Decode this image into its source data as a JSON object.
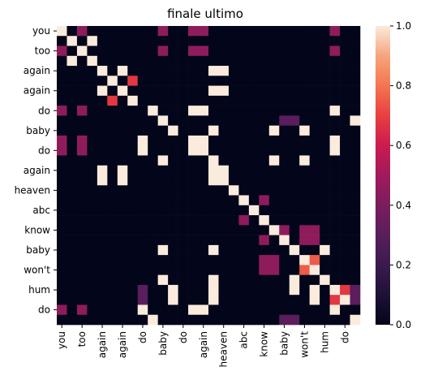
{
  "chart_data": {
    "type": "heatmap",
    "title": "finale ultimo",
    "xlabel": "",
    "ylabel": "",
    "rows": 30,
    "cols": 30,
    "y_tick_labels": [
      "you",
      "too",
      "again",
      "again",
      "do",
      "baby",
      "do",
      "again",
      "heaven",
      "abc",
      "know",
      "baby",
      "won't",
      "hum",
      "do"
    ],
    "x_tick_labels": [
      "you",
      "too",
      "again",
      "again",
      "do",
      "baby",
      "do",
      "again",
      "heaven",
      "abc",
      "know",
      "baby",
      "won't",
      "hum",
      "do"
    ],
    "colorbar": {
      "min": 0.0,
      "max": 1.0,
      "ticks": [
        "0.0",
        "0.2",
        "0.4",
        "0.6",
        "0.8",
        "1.0"
      ]
    },
    "colormap": "rocket",
    "default_value": 0.0,
    "cells": [
      {
        "r": 0,
        "c": 0,
        "v": 1.0
      },
      {
        "r": 0,
        "c": 2,
        "v": 0.45
      },
      {
        "r": 0,
        "c": 10,
        "v": 0.45
      },
      {
        "r": 0,
        "c": 13,
        "v": 0.45
      },
      {
        "r": 0,
        "c": 14,
        "v": 0.45
      },
      {
        "r": 0,
        "c": 27,
        "v": 0.45
      },
      {
        "r": 1,
        "c": 1,
        "v": 1.0
      },
      {
        "r": 1,
        "c": 3,
        "v": 1.0
      },
      {
        "r": 2,
        "c": 0,
        "v": 0.45
      },
      {
        "r": 2,
        "c": 2,
        "v": 1.0
      },
      {
        "r": 2,
        "c": 10,
        "v": 0.45
      },
      {
        "r": 2,
        "c": 13,
        "v": 0.45
      },
      {
        "r": 2,
        "c": 14,
        "v": 0.45
      },
      {
        "r": 2,
        "c": 27,
        "v": 0.45
      },
      {
        "r": 3,
        "c": 1,
        "v": 1.0
      },
      {
        "r": 3,
        "c": 3,
        "v": 1.0
      },
      {
        "r": 4,
        "c": 4,
        "v": 1.0
      },
      {
        "r": 4,
        "c": 6,
        "v": 1.0
      },
      {
        "r": 4,
        "c": 15,
        "v": 1.0
      },
      {
        "r": 4,
        "c": 16,
        "v": 1.0
      },
      {
        "r": 5,
        "c": 5,
        "v": 1.0
      },
      {
        "r": 5,
        "c": 7,
        "v": 0.68
      },
      {
        "r": 6,
        "c": 4,
        "v": 1.0
      },
      {
        "r": 6,
        "c": 6,
        "v": 1.0
      },
      {
        "r": 6,
        "c": 15,
        "v": 1.0
      },
      {
        "r": 6,
        "c": 16,
        "v": 1.0
      },
      {
        "r": 7,
        "c": 5,
        "v": 0.68
      },
      {
        "r": 7,
        "c": 7,
        "v": 1.0
      },
      {
        "r": 8,
        "c": 0,
        "v": 0.45
      },
      {
        "r": 8,
        "c": 2,
        "v": 0.45
      },
      {
        "r": 8,
        "c": 9,
        "v": 1.0
      },
      {
        "r": 8,
        "c": 13,
        "v": 1.0
      },
      {
        "r": 8,
        "c": 14,
        "v": 1.0
      },
      {
        "r": 8,
        "c": 27,
        "v": 1.0
      },
      {
        "r": 9,
        "c": 10,
        "v": 1.0
      },
      {
        "r": 9,
        "c": 22,
        "v": 0.3
      },
      {
        "r": 9,
        "c": 23,
        "v": 0.3
      },
      {
        "r": 9,
        "c": 29,
        "v": 1.0
      },
      {
        "r": 10,
        "c": 11,
        "v": 1.0
      },
      {
        "r": 10,
        "c": 15,
        "v": 1.0
      },
      {
        "r": 10,
        "c": 21,
        "v": 1.0
      },
      {
        "r": 10,
        "c": 24,
        "v": 1.0
      },
      {
        "r": 11,
        "c": 0,
        "v": 0.45
      },
      {
        "r": 11,
        "c": 2,
        "v": 0.45
      },
      {
        "r": 11,
        "c": 8,
        "v": 1.0
      },
      {
        "r": 11,
        "c": 13,
        "v": 1.0
      },
      {
        "r": 11,
        "c": 14,
        "v": 1.0
      },
      {
        "r": 11,
        "c": 27,
        "v": 1.0
      },
      {
        "r": 12,
        "c": 0,
        "v": 0.45
      },
      {
        "r": 12,
        "c": 2,
        "v": 0.45
      },
      {
        "r": 12,
        "c": 8,
        "v": 1.0
      },
      {
        "r": 12,
        "c": 13,
        "v": 1.0
      },
      {
        "r": 12,
        "c": 14,
        "v": 1.0
      },
      {
        "r": 12,
        "c": 27,
        "v": 1.0
      },
      {
        "r": 13,
        "c": 10,
        "v": 1.0
      },
      {
        "r": 13,
        "c": 15,
        "v": 1.0
      },
      {
        "r": 13,
        "c": 21,
        "v": 1.0
      },
      {
        "r": 13,
        "c": 24,
        "v": 1.0
      },
      {
        "r": 14,
        "c": 4,
        "v": 1.0
      },
      {
        "r": 14,
        "c": 6,
        "v": 1.0
      },
      {
        "r": 14,
        "c": 15,
        "v": 1.0
      },
      {
        "r": 14,
        "c": 16,
        "v": 1.0
      },
      {
        "r": 15,
        "c": 4,
        "v": 1.0
      },
      {
        "r": 15,
        "c": 6,
        "v": 1.0
      },
      {
        "r": 15,
        "c": 15,
        "v": 1.0
      },
      {
        "r": 15,
        "c": 16,
        "v": 1.0
      },
      {
        "r": 16,
        "c": 17,
        "v": 1.0
      },
      {
        "r": 17,
        "c": 18,
        "v": 1.0
      },
      {
        "r": 17,
        "c": 20,
        "v": 0.45
      },
      {
        "r": 18,
        "c": 19,
        "v": 1.0
      },
      {
        "r": 19,
        "c": 18,
        "v": 0.45
      },
      {
        "r": 19,
        "c": 20,
        "v": 1.0
      },
      {
        "r": 20,
        "c": 21,
        "v": 1.0
      },
      {
        "r": 20,
        "c": 22,
        "v": 0.45
      },
      {
        "r": 20,
        "c": 24,
        "v": 0.45
      },
      {
        "r": 20,
        "c": 25,
        "v": 0.45
      },
      {
        "r": 21,
        "c": 20,
        "v": 0.45
      },
      {
        "r": 21,
        "c": 22,
        "v": 1.0
      },
      {
        "r": 21,
        "c": 24,
        "v": 0.45
      },
      {
        "r": 21,
        "c": 25,
        "v": 0.45
      },
      {
        "r": 22,
        "c": 10,
        "v": 1.0
      },
      {
        "r": 22,
        "c": 15,
        "v": 1.0
      },
      {
        "r": 22,
        "c": 23,
        "v": 1.0
      },
      {
        "r": 22,
        "c": 26,
        "v": 1.0
      },
      {
        "r": 23,
        "c": 20,
        "v": 0.45
      },
      {
        "r": 23,
        "c": 21,
        "v": 0.45
      },
      {
        "r": 23,
        "c": 24,
        "v": 1.0
      },
      {
        "r": 23,
        "c": 25,
        "v": 0.75
      },
      {
        "r": 24,
        "c": 20,
        "v": 0.45
      },
      {
        "r": 24,
        "c": 21,
        "v": 0.45
      },
      {
        "r": 24,
        "c": 24,
        "v": 0.75
      },
      {
        "r": 24,
        "c": 25,
        "v": 1.0
      },
      {
        "r": 25,
        "c": 10,
        "v": 1.0
      },
      {
        "r": 25,
        "c": 15,
        "v": 1.0
      },
      {
        "r": 25,
        "c": 23,
        "v": 1.0
      },
      {
        "r": 25,
        "c": 26,
        "v": 1.0
      },
      {
        "r": 26,
        "c": 27,
        "v": 1.0
      },
      {
        "r": 26,
        "c": 28,
        "v": 0.68
      },
      {
        "r": 27,
        "c": 27,
        "v": 0.68
      },
      {
        "r": 27,
        "c": 28,
        "v": 1.0
      },
      {
        "r": 28,
        "c": 0,
        "v": 0.45
      },
      {
        "r": 28,
        "c": 2,
        "v": 0.45
      },
      {
        "r": 28,
        "c": 8,
        "v": 1.0
      },
      {
        "r": 28,
        "c": 13,
        "v": 1.0
      },
      {
        "r": 28,
        "c": 14,
        "v": 1.0
      },
      {
        "r": 28,
        "c": 27,
        "v": 1.0
      },
      {
        "r": 29,
        "c": 9,
        "v": 1.0
      },
      {
        "r": 29,
        "c": 22,
        "v": 0.3
      },
      {
        "r": 29,
        "c": 23,
        "v": 0.3
      },
      {
        "r": 29,
        "c": 29,
        "v": 1.0
      },
      {
        "r": 22,
        "c": 0,
        "v": 0.0
      },
      {
        "r": 9,
        "c": 29,
        "v": 1.0
      },
      {
        "r": 26,
        "c": 8,
        "v": 0.3
      },
      {
        "r": 27,
        "c": 8,
        "v": 0.3
      },
      {
        "r": 26,
        "c": 29,
        "v": 0.3
      },
      {
        "r": 27,
        "c": 29,
        "v": 0.3
      },
      {
        "r": 26,
        "c": 11,
        "v": 1.0
      },
      {
        "r": 26,
        "c": 15,
        "v": 1.0
      },
      {
        "r": 26,
        "c": 23,
        "v": 1.0
      },
      {
        "r": 27,
        "c": 11,
        "v": 1.0
      },
      {
        "r": 27,
        "c": 15,
        "v": 1.0
      },
      {
        "r": 26,
        "c": 25,
        "v": 1.0
      },
      {
        "r": 27,
        "c": 25,
        "v": 1.0
      }
    ]
  }
}
